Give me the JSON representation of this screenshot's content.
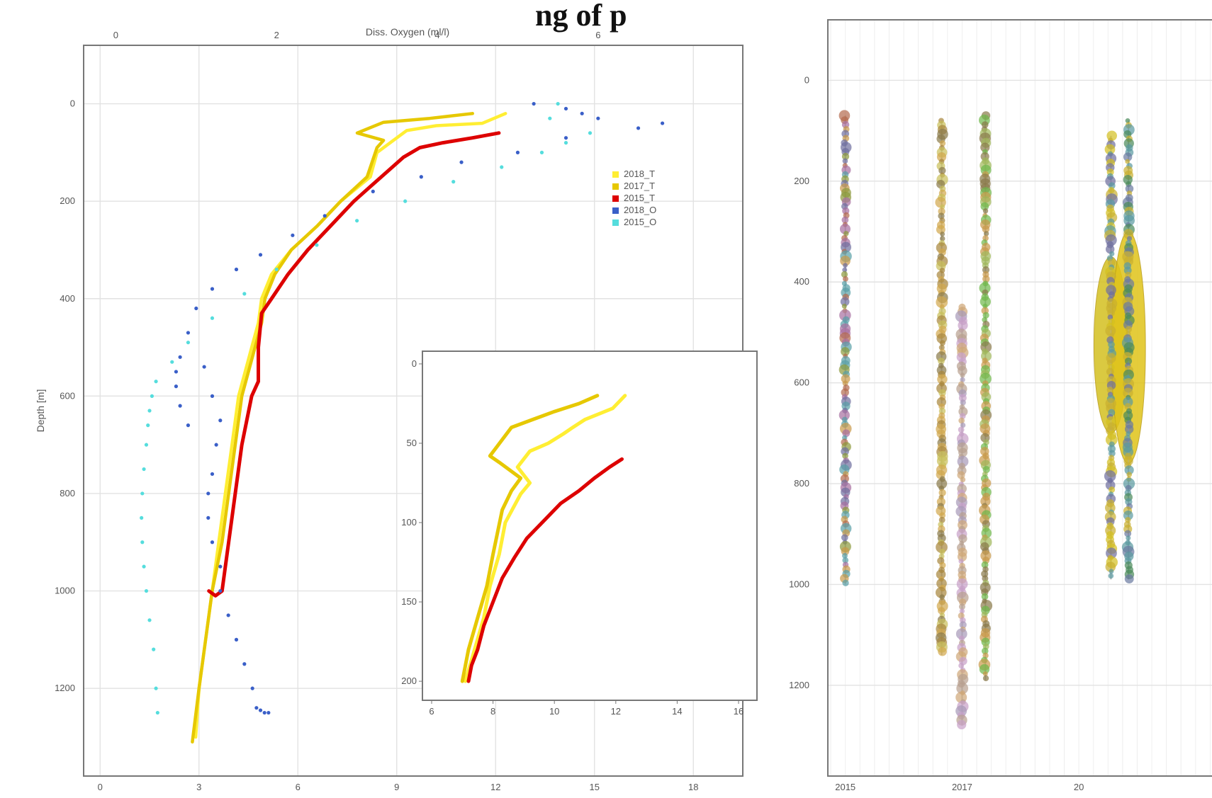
{
  "header_fragment": "ng of p",
  "chart_data": [
    {
      "type": "scatter",
      "xlabel_top": "Diss. Oxygen (ml/l)",
      "ylabel": "Depth [m]",
      "xlim_bottom": [
        -0.5,
        19.5
      ],
      "xlim_top": [
        -0.4,
        7.8
      ],
      "ylim": [
        -120,
        1380
      ],
      "y_reversed": true,
      "xticks_bottom": [
        "0",
        "3",
        "6",
        "9",
        "12",
        "15",
        "18"
      ],
      "xticks_bottom_values": [
        0,
        3,
        6,
        9,
        12,
        15,
        18
      ],
      "xticks_top": [
        "0",
        "2",
        "4",
        "6"
      ],
      "xticks_top_values": [
        0,
        2,
        4,
        6
      ],
      "yticks": [
        "0",
        "200",
        "400",
        "600",
        "800",
        "1000",
        "1200"
      ],
      "yticks_values": [
        0,
        200,
        400,
        600,
        800,
        1000,
        1200
      ],
      "legend_position": "top-right",
      "legend": [
        {
          "label": "2018_T",
          "color": "#ffee33"
        },
        {
          "label": "2017_T",
          "color": "#e6c800"
        },
        {
          "label": "2015_T",
          "color": "#dd0000"
        },
        {
          "label": "2018_O",
          "color": "#3a5fc8"
        },
        {
          "label": "2015_O",
          "color": "#55dddd"
        }
      ],
      "series": [
        {
          "name": "2018_T",
          "axis": "bottom",
          "style": "line",
          "color": "#ffee33",
          "x": [
            12.3,
            11.6,
            10.2,
            9.3,
            8.9,
            8.4,
            8.2,
            7.3,
            6.6,
            5.8,
            5.2,
            4.9,
            4.8,
            4.6,
            4.4,
            4.2,
            4.0,
            3.8,
            3.6,
            3.4,
            3.2,
            3.0,
            2.9
          ],
          "y": [
            20,
            40,
            45,
            55,
            75,
            100,
            150,
            200,
            250,
            300,
            350,
            400,
            450,
            500,
            550,
            600,
            700,
            800,
            900,
            1000,
            1100,
            1200,
            1300
          ]
        },
        {
          "name": "2017_T",
          "axis": "bottom",
          "style": "line",
          "color": "#e6c800",
          "x": [
            11.3,
            10.0,
            8.6,
            7.8,
            8.6,
            8.4,
            8.1,
            7.3,
            6.6,
            5.8,
            5.3,
            5.0,
            4.9,
            4.7,
            4.5,
            4.3,
            4.1,
            3.9,
            3.7,
            3.4,
            3.2,
            3.0,
            2.8
          ],
          "y": [
            20,
            30,
            38,
            60,
            75,
            90,
            150,
            200,
            250,
            300,
            350,
            400,
            450,
            500,
            550,
            600,
            700,
            800,
            900,
            1000,
            1100,
            1200,
            1310
          ]
        },
        {
          "name": "2015_T",
          "axis": "bottom",
          "style": "line",
          "color": "#dd0000",
          "x": [
            12.1,
            11.3,
            10.4,
            9.7,
            9.2,
            8.7,
            8.2,
            7.7,
            7.0,
            6.3,
            5.7,
            5.2,
            4.9,
            4.8,
            4.8,
            4.6,
            4.3,
            4.1,
            3.9,
            3.7,
            3.5,
            3.3
          ],
          "y": [
            60,
            70,
            80,
            90,
            110,
            140,
            170,
            200,
            250,
            300,
            350,
            400,
            430,
            500,
            570,
            600,
            700,
            800,
            900,
            1000,
            1010,
            1000
          ]
        },
        {
          "name": "2018_O",
          "axis": "top",
          "style": "points",
          "color": "#3a5fc8",
          "x": [
            5.2,
            5.6,
            5.8,
            6.0,
            6.5,
            6.8,
            5.6,
            5.0,
            4.3,
            3.8,
            3.2,
            2.6,
            2.2,
            1.8,
            1.5,
            1.2,
            1.0,
            0.9,
            0.8,
            0.75,
            0.75,
            0.8,
            0.9,
            1.1,
            1.2,
            1.3,
            1.25,
            1.2,
            1.15,
            1.15,
            1.2,
            1.3,
            1.3,
            1.4,
            1.5,
            1.6,
            1.7,
            1.75,
            1.8,
            1.85,
            1.9
          ],
          "y": [
            0,
            10,
            20,
            30,
            50,
            40,
            70,
            100,
            120,
            150,
            180,
            230,
            270,
            310,
            340,
            380,
            420,
            470,
            520,
            550,
            580,
            620,
            660,
            540,
            600,
            650,
            700,
            760,
            800,
            850,
            900,
            950,
            1000,
            1050,
            1100,
            1150,
            1200,
            1240,
            1245,
            1250,
            1250
          ]
        },
        {
          "name": "2015_O",
          "axis": "top",
          "style": "points",
          "color": "#55dddd",
          "x": [
            5.5,
            5.4,
            5.9,
            5.6,
            5.3,
            4.8,
            4.2,
            3.6,
            3.0,
            2.5,
            2.0,
            1.6,
            1.2,
            0.9,
            0.7,
            0.5,
            0.45,
            0.42,
            0.4,
            0.38,
            0.35,
            0.33,
            0.32,
            0.33,
            0.35,
            0.38,
            0.42,
            0.47,
            0.5,
            0.52
          ],
          "y": [
            0,
            30,
            60,
            80,
            100,
            130,
            160,
            200,
            240,
            290,
            340,
            390,
            440,
            490,
            530,
            570,
            600,
            630,
            660,
            700,
            750,
            800,
            850,
            900,
            950,
            1000,
            1060,
            1120,
            1200,
            1250
          ]
        }
      ]
    },
    {
      "type": "line",
      "inset": true,
      "xlim": [
        5.7,
        16.6
      ],
      "ylim": [
        -8,
        212
      ],
      "y_reversed": true,
      "xticks": [
        "6",
        "8",
        "10",
        "12",
        "14",
        "16"
      ],
      "xticks_values": [
        6,
        8,
        10,
        12,
        14,
        16
      ],
      "yticks": [
        "0",
        "50",
        "100",
        "150",
        "200"
      ],
      "yticks_values": [
        0,
        50,
        100,
        150,
        200
      ],
      "series": [
        {
          "name": "2018_T",
          "color": "#ffee33",
          "x": [
            12.3,
            11.9,
            11.0,
            10.6,
            10.3,
            9.8,
            9.2,
            8.8,
            9.2,
            8.9,
            8.4,
            8.2,
            7.9,
            7.7,
            7.4,
            7.1
          ],
          "y": [
            20,
            28,
            35,
            40,
            44,
            50,
            55,
            65,
            75,
            82,
            100,
            120,
            140,
            160,
            180,
            200
          ]
        },
        {
          "name": "2017_T",
          "color": "#e6c800",
          "x": [
            11.4,
            10.8,
            10.0,
            9.3,
            8.6,
            7.9,
            8.2,
            8.9,
            8.6,
            8.3,
            8.0,
            7.8,
            7.5,
            7.2,
            7.0
          ],
          "y": [
            20,
            25,
            30,
            35,
            40,
            58,
            62,
            72,
            80,
            92,
            120,
            140,
            160,
            180,
            200
          ]
        },
        {
          "name": "2015_T",
          "color": "#dd0000",
          "x": [
            12.2,
            11.8,
            11.3,
            10.8,
            10.2,
            9.6,
            9.1,
            8.7,
            8.3,
            8.0,
            7.7,
            7.5,
            7.3,
            7.2
          ],
          "y": [
            60,
            65,
            72,
            80,
            88,
            100,
            110,
            122,
            135,
            150,
            165,
            180,
            190,
            200
          ]
        }
      ]
    },
    {
      "type": "scatter",
      "xlim": [
        2014.7,
        2021.5
      ],
      "ylim": [
        -120,
        1380
      ],
      "y_reversed": true,
      "xticks": [
        "2015",
        "2017",
        "20"
      ],
      "xticks_values": [
        2015,
        2017,
        2019
      ],
      "yticks": [
        "0",
        "200",
        "400",
        "600",
        "800",
        "1000",
        "1200"
      ],
      "yticks_values": [
        0,
        200,
        400,
        600,
        800,
        1000,
        1200
      ],
      "columns": [
        {
          "x": 2015.0,
          "depth_min": 70,
          "depth_max": 1000,
          "palette": [
            "#c99a4a",
            "#6f6f9f",
            "#5aa0a8",
            "#a86fa0",
            "#8c9a3c",
            "#b56a4e"
          ]
        },
        {
          "x": 2016.65,
          "depth_min": 80,
          "depth_max": 1140,
          "palette": [
            "#d2a84c",
            "#a8863c",
            "#8a7a4a",
            "#c9c05a"
          ]
        },
        {
          "x": 2017.0,
          "depth_min": 450,
          "depth_max": 1280,
          "palette": [
            "#c8a0c8",
            "#a89ab8",
            "#b8a090",
            "#d0a878"
          ]
        },
        {
          "x": 2017.4,
          "depth_min": 70,
          "depth_max": 1190,
          "palette": [
            "#c99a4a",
            "#8a7a4a",
            "#a0b85a",
            "#6fb84a"
          ]
        },
        {
          "x": 2019.55,
          "depth_min": 110,
          "depth_max": 990,
          "palette": [
            "#5a9aa0",
            "#6f6f9f",
            "#c9b030",
            "#d4c020"
          ]
        },
        {
          "x": 2019.85,
          "depth_min": 80,
          "depth_max": 990,
          "palette": [
            "#5a9aa0",
            "#4a8a5a",
            "#c9b030",
            "#6a7aa0"
          ]
        }
      ],
      "blobs": [
        {
          "x": 2019.55,
          "depth_min": 350,
          "depth_max": 700,
          "color": "#d4c020"
        },
        {
          "x": 2019.85,
          "depth_min": 300,
          "depth_max": 760,
          "color": "#e0c41a"
        }
      ]
    }
  ]
}
